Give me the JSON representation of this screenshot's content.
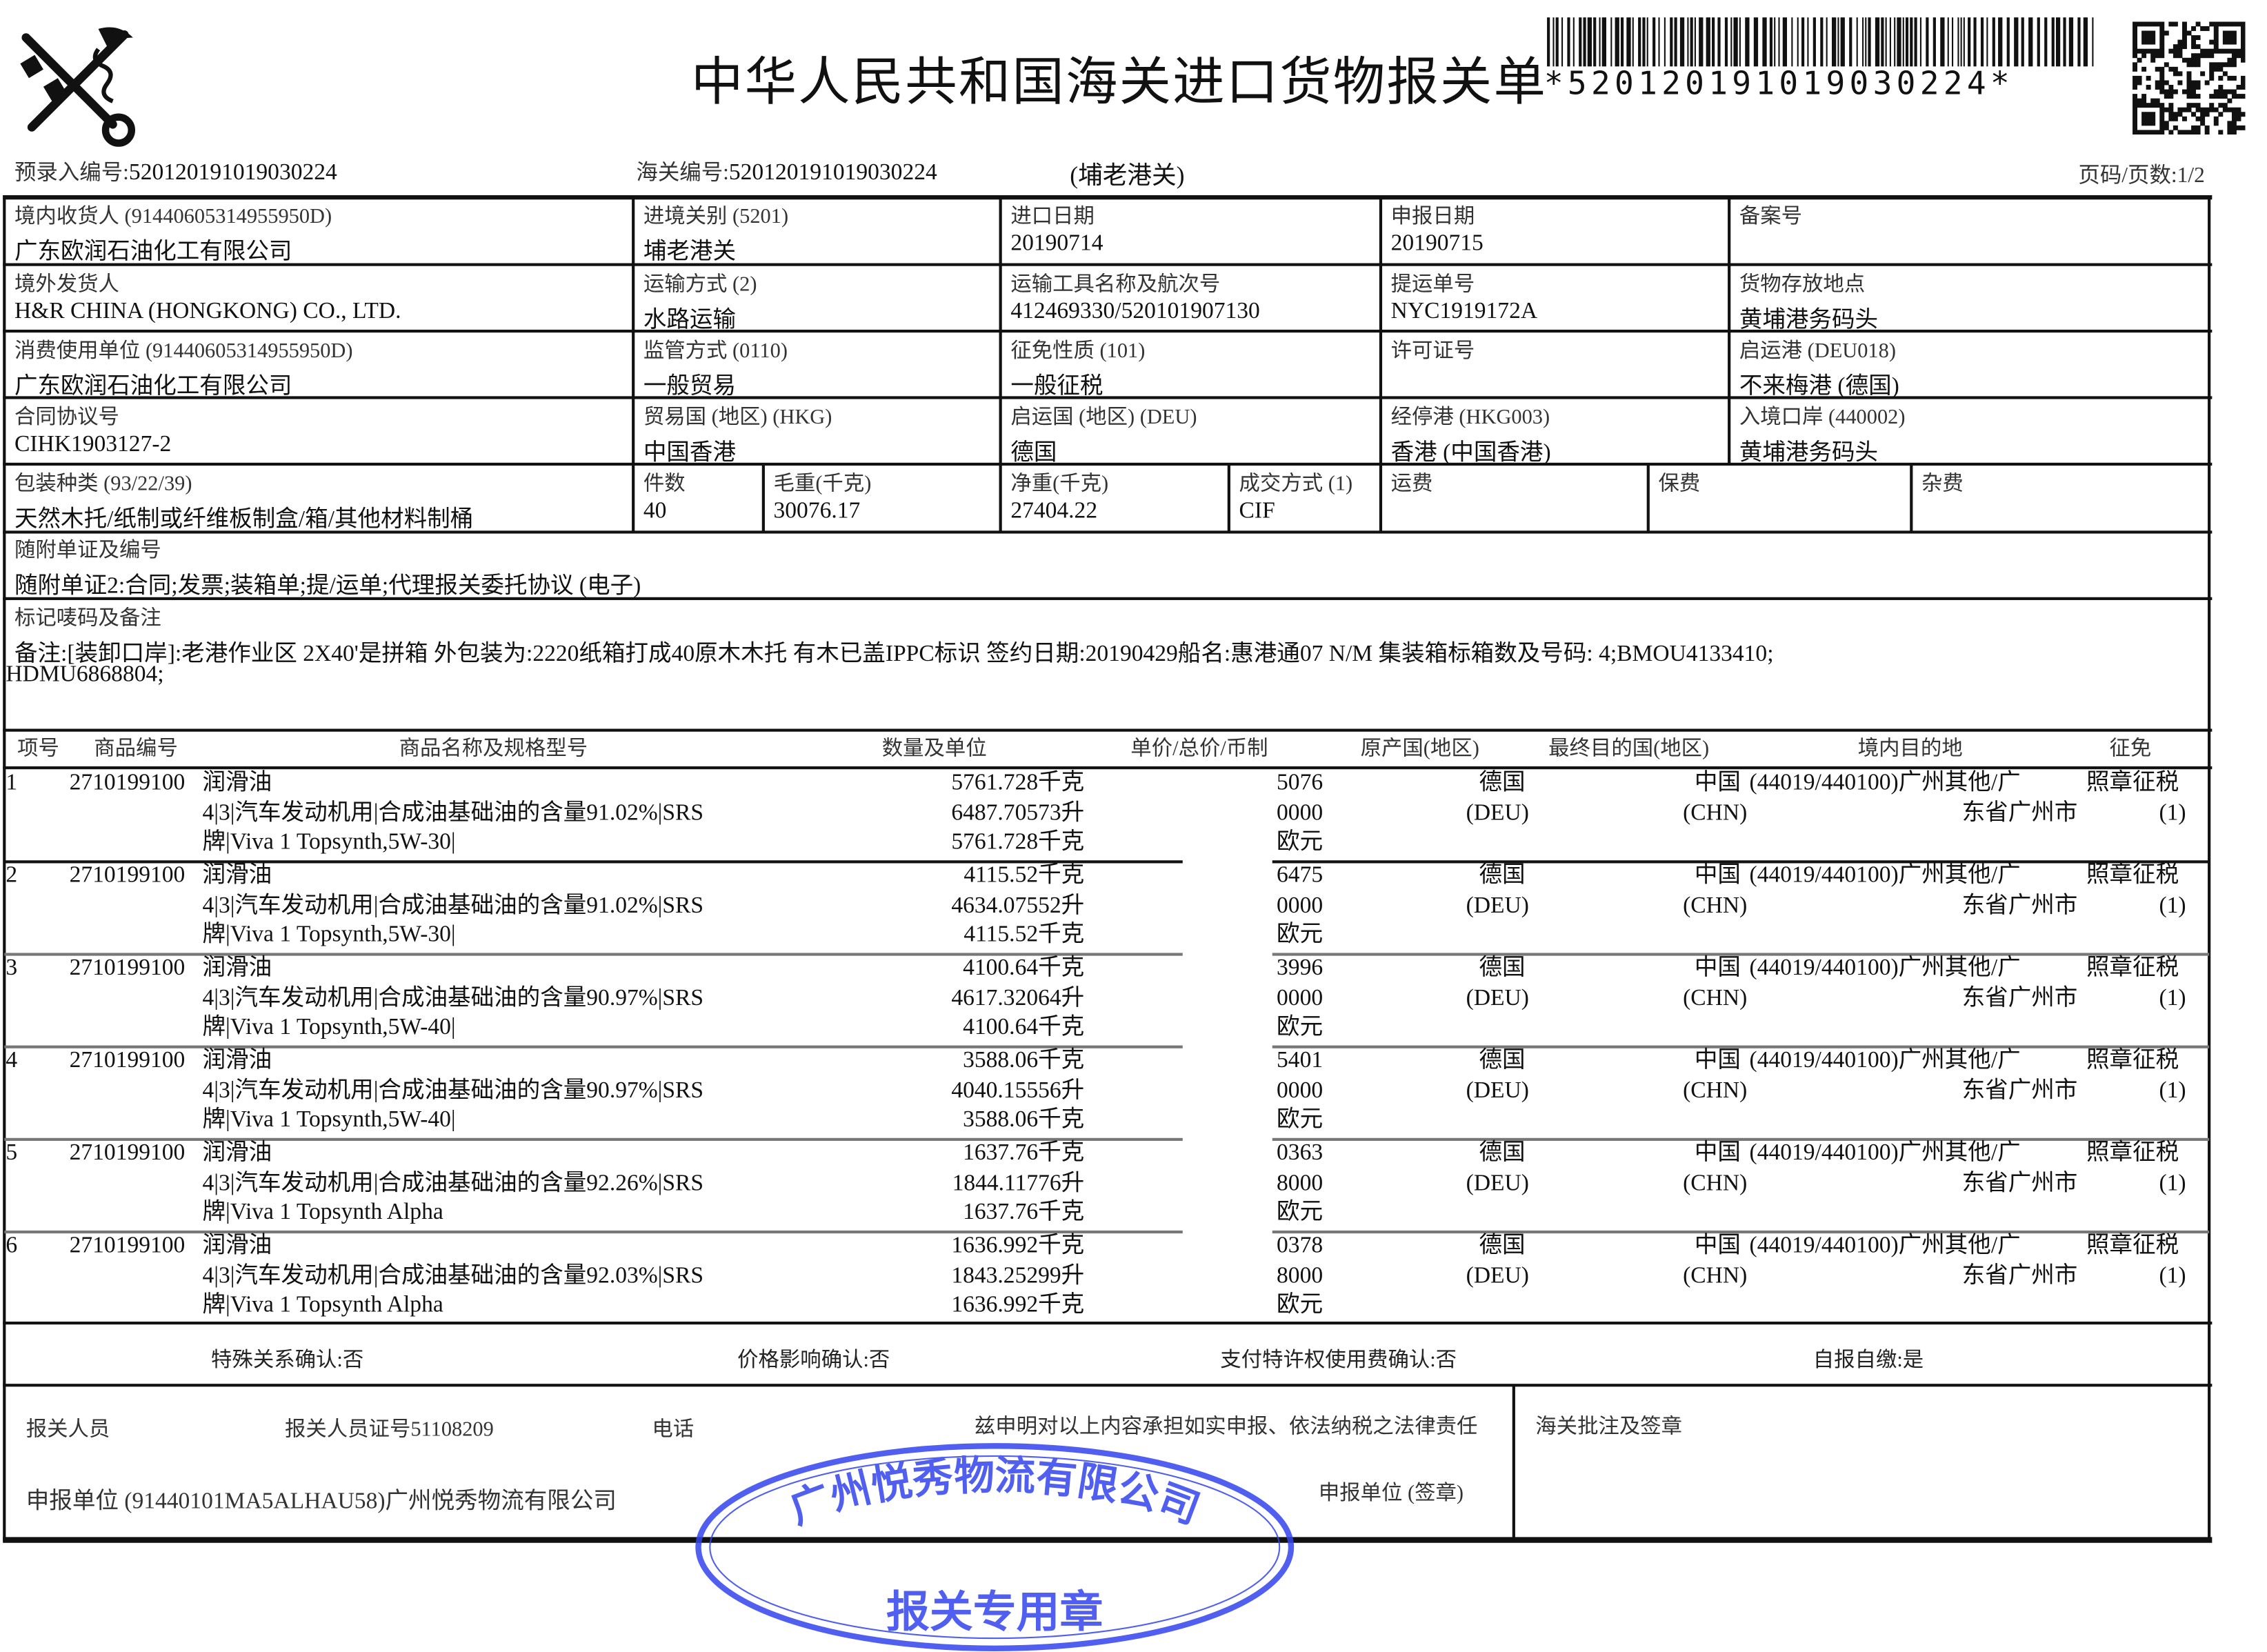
{
  "header": {
    "title": "中华人民共和国海关进口货物报关单",
    "barcode_text": "*520120191019030224*",
    "pre_entry_label": "预录入编号:",
    "pre_entry_no": "520120191019030224",
    "customs_no_label": "海关编号:",
    "customs_no": "520120191019030224",
    "customs_office": "(埔老港关)",
    "page_info": "页码/页数:1/2"
  },
  "fields": {
    "consignee": {
      "label": "境内收货人 (91440605314955950D)",
      "value": "广东欧润石油化工有限公司"
    },
    "entry_customs": {
      "label": "进境关别  (5201)",
      "value": "埔老港关"
    },
    "import_date": {
      "label": "进口日期",
      "value": "20190714"
    },
    "declare_date": {
      "label": "申报日期",
      "value": "20190715"
    },
    "record_no": {
      "label": "备案号",
      "value": ""
    },
    "shipper": {
      "label": "境外发货人",
      "value": "H&R CHINA (HONGKONG) CO., LTD."
    },
    "transport_mode": {
      "label": "运输方式 (2)",
      "value": "水路运输"
    },
    "vessel_voyage": {
      "label": "运输工具名称及航次号",
      "value": "412469330/520101907130"
    },
    "bill_no": {
      "label": "提运单号",
      "value": "NYC1919172A"
    },
    "storage_place": {
      "label": "货物存放地点",
      "value": "黄埔港务码头"
    },
    "consumer": {
      "label": "消费使用单位 (91440605314955950D)",
      "value": "广东欧润石油化工有限公司"
    },
    "supervision": {
      "label": "监管方式 (0110)",
      "value": "一般贸易"
    },
    "levy_nature": {
      "label": "征免性质 (101)",
      "value": "一般征税"
    },
    "license_no": {
      "label": "许可证号",
      "value": ""
    },
    "departure_port": {
      "label": "启运港 (DEU018)",
      "value": "不来梅港 (德国)"
    },
    "contract_no": {
      "label": "合同协议号",
      "value": "CIHK1903127-2"
    },
    "trade_country": {
      "label": "贸易国 (地区) (HKG)",
      "value": "中国香港"
    },
    "departure_country": {
      "label": "启运国 (地区) (DEU)",
      "value": "德国"
    },
    "transit_port": {
      "label": "经停港 (HKG003)",
      "value": "香港 (中国香港)"
    },
    "entry_port": {
      "label": "入境口岸 (440002)",
      "value": "黄埔港务码头"
    },
    "package_type": {
      "label": "包装种类 (93/22/39)",
      "value": "天然木托/纸制或纤维板制盒/箱/其他材料制桶"
    },
    "pieces": {
      "label": "件数",
      "value": "40"
    },
    "gross_weight": {
      "label": "毛重(千克)",
      "value": "30076.17"
    },
    "net_weight": {
      "label": "净重(千克)",
      "value": "27404.22"
    },
    "trade_terms": {
      "label": "成交方式 (1)",
      "value": "CIF"
    },
    "freight": {
      "label": "运费",
      "value": ""
    },
    "insurance": {
      "label": "保费",
      "value": ""
    },
    "misc_fee": {
      "label": "杂费",
      "value": ""
    },
    "documents": {
      "label": "随附单证及编号",
      "value": "随附单证2:合同;发票;装箱单;提/运单;代理报关委托协议 (电子)"
    },
    "marks": {
      "label": "标记唛码及备注",
      "line1": "备注:[装卸口岸]:老港作业区 2X40'是拼箱 外包装为:2220纸箱打成40原木木托 有木已盖IPPC标识 签约日期:20190429船名:惠港通07 N/M  集装箱标箱数及号码: 4;BMOU4133410;",
      "line2": "HDMU6868804;"
    }
  },
  "item_headers": [
    "项号",
    "商品编号",
    "商品名称及规格型号",
    "数量及单位",
    "单价/总价/币制",
    "原产国(地区)",
    "最终目的国(地区)",
    "境内目的地",
    "征免"
  ],
  "items": [
    {
      "no": "1",
      "code": "2710199100",
      "name": "润滑油",
      "spec1": "4|3|汽车发动机用|合成油基础油的含量91.02%|SRS",
      "spec2": "牌|Viva 1 Topsynth,5W-30|",
      "qty1": "5761.728千克",
      "qty2": "6487.70573升",
      "qty3": "5761.728千克",
      "price1": "5076",
      "price2": "0000",
      "currency": "欧元",
      "origin": "德国",
      "origin_code": "(DEU)",
      "dest_country": "中国",
      "dest_code": "(CHN)",
      "domestic1": "(44019/440100)广州其他/广",
      "domestic2": "东省广州市",
      "levy": "照章征税",
      "levy_code": "(1)"
    },
    {
      "no": "2",
      "code": "2710199100",
      "name": "润滑油",
      "spec1": "4|3|汽车发动机用|合成油基础油的含量91.02%|SRS",
      "spec2": "牌|Viva 1 Topsynth,5W-30|",
      "qty1": "4115.52千克",
      "qty2": "4634.07552升",
      "qty3": "4115.52千克",
      "price1": "6475",
      "price2": "0000",
      "currency": "欧元",
      "origin": "德国",
      "origin_code": "(DEU)",
      "dest_country": "中国",
      "dest_code": "(CHN)",
      "domestic1": "(44019/440100)广州其他/广",
      "domestic2": "东省广州市",
      "levy": "照章征税",
      "levy_code": "(1)"
    },
    {
      "no": "3",
      "code": "2710199100",
      "name": "润滑油",
      "spec1": "4|3|汽车发动机用|合成油基础油的含量90.97%|SRS",
      "spec2": "牌|Viva 1 Topsynth,5W-40|",
      "qty1": "4100.64千克",
      "qty2": "4617.32064升",
      "qty3": "4100.64千克",
      "price1": "3996",
      "price2": "0000",
      "currency": "欧元",
      "origin": "德国",
      "origin_code": "(DEU)",
      "dest_country": "中国",
      "dest_code": "(CHN)",
      "domestic1": "(44019/440100)广州其他/广",
      "domestic2": "东省广州市",
      "levy": "照章征税",
      "levy_code": "(1)"
    },
    {
      "no": "4",
      "code": "2710199100",
      "name": "润滑油",
      "spec1": "4|3|汽车发动机用|合成油基础油的含量90.97%|SRS",
      "spec2": "牌|Viva 1 Topsynth,5W-40|",
      "qty1": "3588.06千克",
      "qty2": "4040.15556升",
      "qty3": "3588.06千克",
      "price1": "5401",
      "price2": "0000",
      "currency": "欧元",
      "origin": "德国",
      "origin_code": "(DEU)",
      "dest_country": "中国",
      "dest_code": "(CHN)",
      "domestic1": "(44019/440100)广州其他/广",
      "domestic2": "东省广州市",
      "levy": "照章征税",
      "levy_code": "(1)"
    },
    {
      "no": "5",
      "code": "2710199100",
      "name": "润滑油",
      "spec1": "4|3|汽车发动机用|合成油基础油的含量92.26%|SRS",
      "spec2": "牌|Viva 1 Topsynth Alpha",
      "qty1": "1637.76千克",
      "qty2": "1844.11776升",
      "qty3": "1637.76千克",
      "price1": "0363",
      "price2": "8000",
      "currency": "欧元",
      "origin": "德国",
      "origin_code": "(DEU)",
      "dest_country": "中国",
      "dest_code": "(CHN)",
      "domestic1": "(44019/440100)广州其他/广",
      "domestic2": "东省广州市",
      "levy": "照章征税",
      "levy_code": "(1)"
    },
    {
      "no": "6",
      "code": "2710199100",
      "name": "润滑油",
      "spec1": "4|3|汽车发动机用|合成油基础油的含量92.03%|SRS",
      "spec2": "牌|Viva 1 Topsynth Alpha",
      "qty1": "1636.992千克",
      "qty2": "1843.25299升",
      "qty3": "1636.992千克",
      "price1": "0378",
      "price2": "8000",
      "currency": "欧元",
      "origin": "德国",
      "origin_code": "(DEU)",
      "dest_country": "中国",
      "dest_code": "(CHN)",
      "domestic1": "(44019/440100)广州其他/广",
      "domestic2": "东省广州市",
      "levy": "照章征税",
      "levy_code": "(1)"
    }
  ],
  "confirmations": {
    "special_relation": "特殊关系确认:否",
    "price_influence": "价格影响确认:否",
    "royalty": "支付特许权使用费确认:否",
    "self_pay": "自报自缴:是"
  },
  "footer": {
    "declarant_label": "报关人员",
    "declarant_cert": "报关人员证号51108209",
    "phone_label": "电话",
    "statement": "兹申明对以上内容承担如实申报、依法纳税之法律责任",
    "declaring_unit": "申报单位 (91440101MA5ALHAU58)广州悦秀物流有限公司",
    "unit_seal": "申报单位 (签章)",
    "customs_approval": "海关批注及签章"
  },
  "stamp": {
    "outer_text": "广州悦秀物流有限公司",
    "inner_text": "报关专用章",
    "color": "#3344ee"
  },
  "colors": {
    "ink": "#111111",
    "stamp": "#3344ee"
  }
}
